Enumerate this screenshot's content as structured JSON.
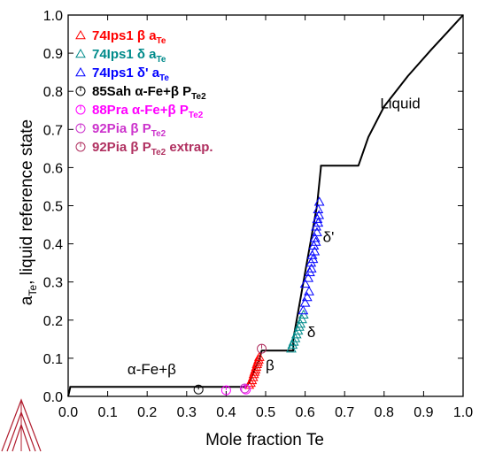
{
  "chart_data": {
    "type": "scatter",
    "xlabel": "Mole fraction Te",
    "ylabel_main": "a",
    "ylabel_sub": "Te",
    "ylabel_rest": ", liquid reference state",
    "xlim": [
      0.0,
      1.0
    ],
    "ylim": [
      0.0,
      1.0
    ],
    "x_ticks": [
      0.0,
      0.1,
      0.2,
      0.3,
      0.4,
      0.5,
      0.6,
      0.7,
      0.8,
      0.9,
      1.0
    ],
    "x_tick_labels": [
      "0.0",
      "0.1",
      "0.2",
      "0.3",
      "0.4",
      "0.5",
      "0.6",
      "0.7",
      "0.8",
      "0.9",
      "1.0"
    ],
    "y_ticks": [
      0.0,
      0.1,
      0.2,
      0.3,
      0.4,
      0.5,
      0.6,
      0.7,
      0.8,
      0.9,
      1.0
    ],
    "y_tick_labels": [
      "0.0",
      "0.1",
      "0.2",
      "0.3",
      "0.4",
      "0.5",
      "0.6",
      "0.7",
      "0.8",
      "0.9",
      "1.0"
    ],
    "grid": false,
    "legend_position": "top-left",
    "calculated_line": {
      "color": "#000000",
      "x": [
        0.0,
        0.005,
        0.005,
        0.45,
        0.46,
        0.485,
        0.49,
        0.49,
        0.56,
        0.57,
        0.57,
        0.63,
        0.64,
        0.64,
        0.735,
        0.76,
        0.8,
        0.86,
        0.92,
        0.96,
        1.0
      ],
      "y": [
        0.0,
        0.022,
        0.025,
        0.025,
        0.04,
        0.1,
        0.12,
        0.12,
        0.12,
        0.12,
        0.15,
        0.5,
        0.6,
        0.605,
        0.605,
        0.68,
        0.76,
        0.84,
        0.91,
        0.955,
        1.0
      ]
    },
    "annotations": [
      {
        "text": "Liquid",
        "x": 0.79,
        "y": 0.755
      },
      {
        "text": "δ'",
        "x": 0.645,
        "y": 0.405
      },
      {
        "text": "δ",
        "x": 0.605,
        "y": 0.155
      },
      {
        "text": "β",
        "x": 0.5,
        "y": 0.068
      },
      {
        "text": "α-Fe+β",
        "x": 0.15,
        "y": 0.058
      }
    ],
    "series": [
      {
        "name": "74Ips1 β a",
        "sub": "Te",
        "suffix": "",
        "marker": "triangle",
        "color": "#ff0000",
        "x": [
          0.458,
          0.462,
          0.465,
          0.468,
          0.47,
          0.472,
          0.474,
          0.476,
          0.478,
          0.48,
          0.482,
          0.484
        ],
        "y": [
          0.03,
          0.035,
          0.042,
          0.05,
          0.058,
          0.064,
          0.07,
          0.077,
          0.084,
          0.09,
          0.096,
          0.103
        ]
      },
      {
        "name": "74Ips1 δ a",
        "sub": "Te",
        "suffix": "",
        "marker": "triangle",
        "color": "#008b8b",
        "x": [
          0.565,
          0.568,
          0.571,
          0.575,
          0.578,
          0.582,
          0.585,
          0.588,
          0.592,
          0.596
        ],
        "y": [
          0.125,
          0.135,
          0.143,
          0.152,
          0.162,
          0.172,
          0.182,
          0.19,
          0.202,
          0.214
        ]
      },
      {
        "name": "74Ips1 δ' a",
        "sub": "Te",
        "suffix": "",
        "marker": "triangle",
        "color": "#0000ff",
        "x": [
          0.595,
          0.6,
          0.605,
          0.61,
          0.6,
          0.608,
          0.612,
          0.616,
          0.615,
          0.62,
          0.618,
          0.624,
          0.622,
          0.627,
          0.625,
          0.63,
          0.628,
          0.633,
          0.631,
          0.635,
          0.633,
          0.636
        ],
        "y": [
          0.225,
          0.245,
          0.26,
          0.275,
          0.295,
          0.31,
          0.325,
          0.335,
          0.35,
          0.36,
          0.37,
          0.38,
          0.395,
          0.405,
          0.415,
          0.43,
          0.445,
          0.455,
          0.465,
          0.475,
          0.49,
          0.51
        ]
      },
      {
        "name": "85Sah α-Fe+β P",
        "sub": "Te2",
        "suffix": "",
        "marker": "circle",
        "color": "#000000",
        "x": [
          0.33
        ],
        "y": [
          0.018
        ]
      },
      {
        "name": "88Pra α-Fe+β P",
        "sub": "Te2",
        "suffix": "",
        "marker": "circle",
        "color": "#ff00ff",
        "x": [
          0.4,
          0.45
        ],
        "y": [
          0.016,
          0.018
        ]
      },
      {
        "name": "92Pia β P",
        "sub": "Te2",
        "suffix": "",
        "marker": "circle",
        "color": "#cc33cc",
        "x": [
          0.447
        ],
        "y": [
          0.021
        ]
      },
      {
        "name": "92Pia β P",
        "sub": "Te2",
        "suffix": " extrap.",
        "marker": "circle",
        "color": "#b03060",
        "x": [
          0.49
        ],
        "y": [
          0.125
        ]
      }
    ]
  },
  "logo": {
    "name": "thermo-calc logo",
    "color": "#b01c2e"
  }
}
